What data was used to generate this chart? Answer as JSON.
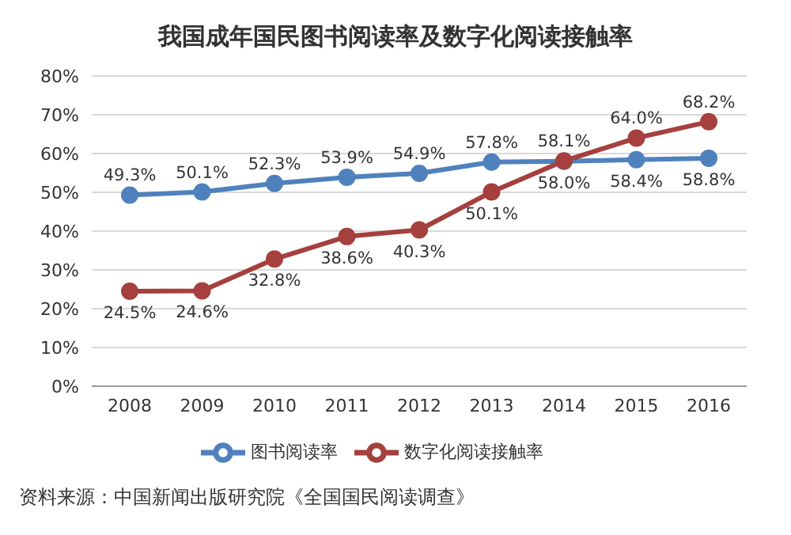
{
  "chart_data": {
    "type": "line",
    "title": "我国成年国民图书阅读率及数字化阅读接触率",
    "categories": [
      "2008",
      "2009",
      "2010",
      "2011",
      "2012",
      "2013",
      "2014",
      "2015",
      "2016"
    ],
    "series": [
      {
        "name": "图书阅读率",
        "color": "#4f81bd",
        "values": [
          49.3,
          50.1,
          52.3,
          53.9,
          54.9,
          57.8,
          58.0,
          58.4,
          58.8
        ],
        "value_labels": [
          "49.3%",
          "50.1%",
          "52.3%",
          "53.9%",
          "54.9%",
          "57.8%",
          "58.0%",
          "58.4%",
          "58.8%"
        ]
      },
      {
        "name": "数字化阅读接触率",
        "color": "#a5403e",
        "values": [
          24.5,
          24.6,
          32.8,
          38.6,
          40.3,
          50.1,
          58.1,
          64.0,
          68.2
        ],
        "value_labels": [
          "24.5%",
          "24.6%",
          "32.8%",
          "38.6%",
          "40.3%",
          "50.1%",
          "58.1%",
          "64.0%",
          "68.2%"
        ]
      }
    ],
    "ylim": [
      0,
      80
    ],
    "yticks": [
      {
        "value": 0,
        "label": "0%"
      },
      {
        "value": 10,
        "label": "10%"
      },
      {
        "value": 20,
        "label": "20%"
      },
      {
        "value": 30,
        "label": "30%"
      },
      {
        "value": 40,
        "label": "40%"
      },
      {
        "value": 50,
        "label": "50%"
      },
      {
        "value": 60,
        "label": "60%"
      },
      {
        "value": 70,
        "label": "70%"
      },
      {
        "value": 80,
        "label": "80%"
      }
    ],
    "grid": "y",
    "legend": "bottom",
    "marker": "circle",
    "line_style": "solid",
    "annotations": [
      "资料来源：中国新闻出版研究院《全国国民阅读调查》"
    ]
  }
}
